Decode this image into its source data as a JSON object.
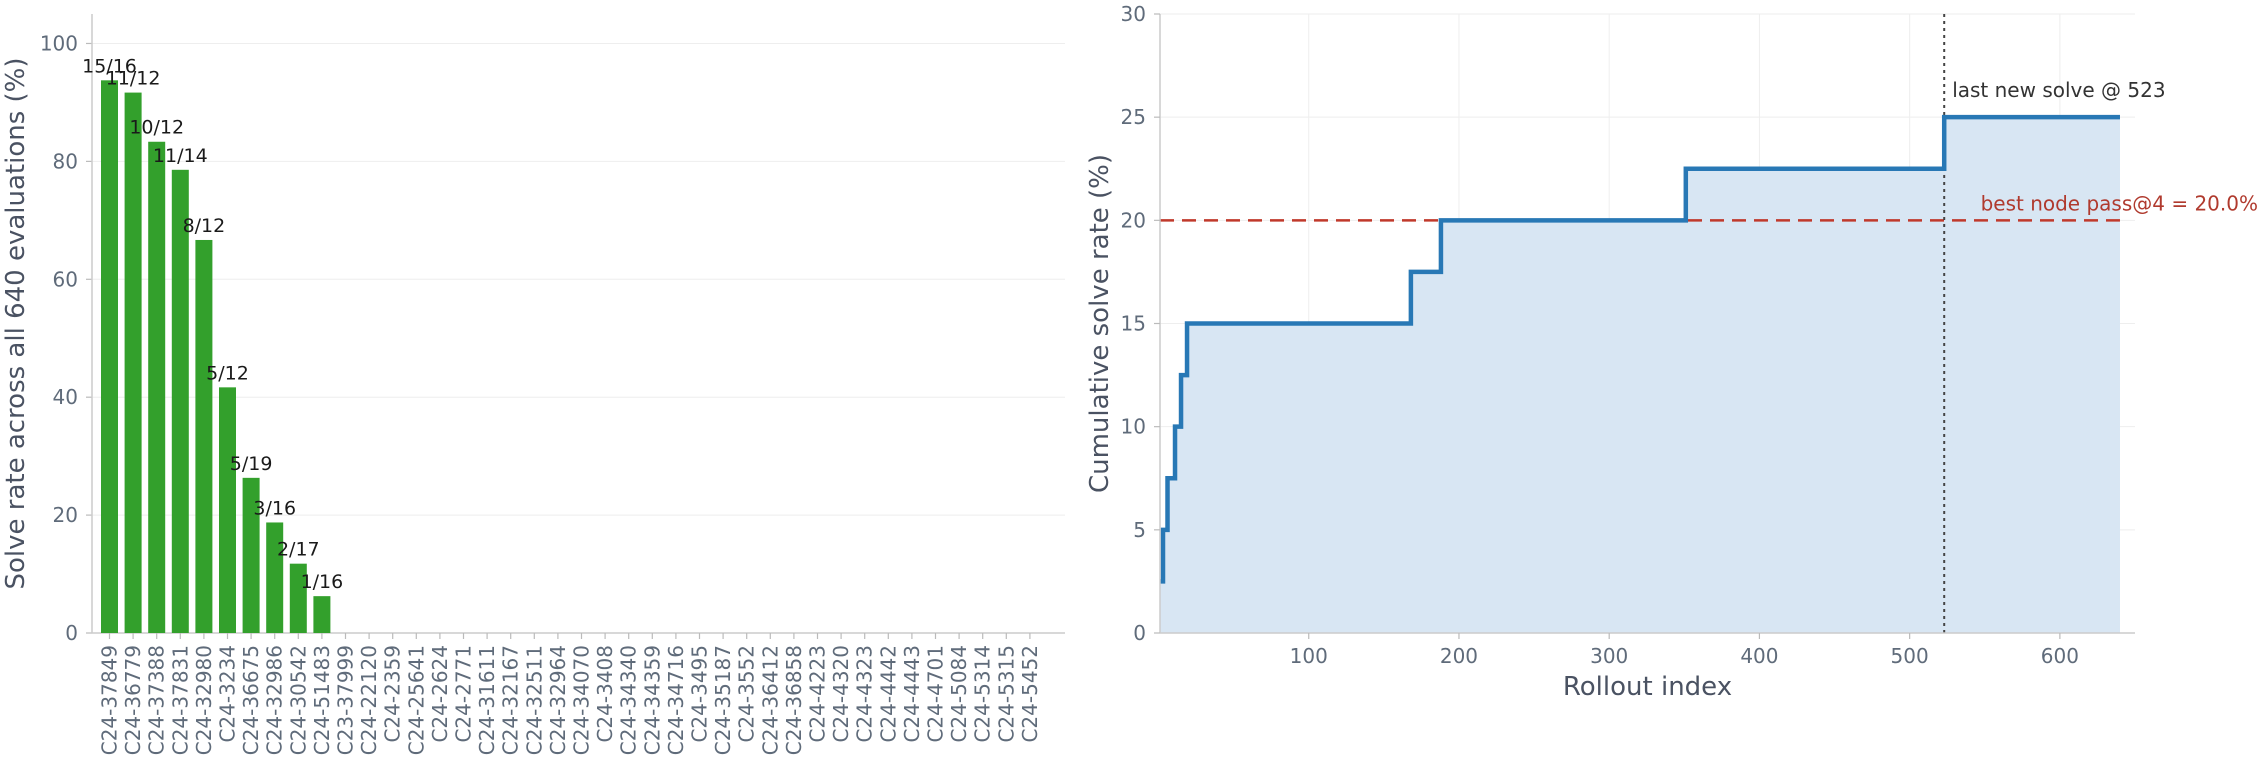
{
  "chart_data": [
    {
      "type": "bar",
      "title": "",
      "xlabel": "",
      "ylabel": "Solve rate across all 640 evaluations (%)",
      "ylim": [
        0,
        105
      ],
      "yticks": [
        0,
        20,
        40,
        60,
        80,
        100
      ],
      "grid": "horizontal",
      "bar_color": "#33a02c",
      "categories": [
        "C24-37849",
        "C24-36779",
        "C24-37388",
        "C24-37831",
        "C24-32980",
        "C24-3234",
        "C24-36675",
        "C24-32986",
        "C24-30542",
        "C24-51483",
        "C23-37999",
        "C24-22120",
        "C24-2359",
        "C24-25641",
        "C24-2624",
        "C24-2771",
        "C24-31611",
        "C24-32167",
        "C24-32511",
        "C24-32964",
        "C24-34070",
        "C24-3408",
        "C24-34340",
        "C24-34359",
        "C24-34716",
        "C24-3495",
        "C24-35187",
        "C24-3552",
        "C24-36412",
        "C24-36858",
        "C24-4223",
        "C24-4320",
        "C24-4323",
        "C24-4442",
        "C24-4443",
        "C24-4701",
        "C24-5084",
        "C24-5314",
        "C24-5315",
        "C24-5452"
      ],
      "values": [
        93.75,
        91.67,
        83.33,
        78.57,
        66.67,
        41.67,
        26.32,
        18.75,
        11.76,
        6.25,
        0,
        0,
        0,
        0,
        0,
        0,
        0,
        0,
        0,
        0,
        0,
        0,
        0,
        0,
        0,
        0,
        0,
        0,
        0,
        0,
        0,
        0,
        0,
        0,
        0,
        0,
        0,
        0,
        0,
        0
      ],
      "data_labels": [
        "15/16",
        "11/12",
        "10/12",
        "11/14",
        "8/12",
        "5/12",
        "5/19",
        "3/16",
        "2/17",
        "1/16",
        "",
        "",
        "",
        "",
        "",
        "",
        "",
        "",
        "",
        "",
        "",
        "",
        "",
        "",
        "",
        "",
        "",
        "",
        "",
        "",
        "",
        "",
        "",
        "",
        "",
        "",
        "",
        "",
        "",
        ""
      ]
    },
    {
      "type": "area",
      "title": "",
      "xlabel": "Rollout index",
      "ylabel": "Cumulative solve rate (%)",
      "xlim": [
        1,
        650
      ],
      "ylim": [
        0,
        30
      ],
      "xticks": [
        100,
        200,
        300,
        400,
        500,
        600
      ],
      "yticks": [
        0,
        5,
        10,
        15,
        20,
        25,
        30
      ],
      "grid": "both",
      "line_color": "#2878b5",
      "fill_color": "#d8e6f3",
      "step_x": [
        1,
        3,
        6,
        11,
        15,
        19,
        168,
        188,
        351,
        523,
        640
      ],
      "step_y": [
        2.5,
        5,
        7.5,
        10,
        12.5,
        15,
        17.5,
        20,
        22.5,
        25,
        25
      ],
      "reference_line": {
        "y": 20,
        "color": "#c0392b",
        "label": "best node pass@4 = 20.0%"
      },
      "vertical_marker": {
        "x": 523,
        "color": "#444444",
        "label": "last new solve @ 523"
      }
    }
  ]
}
